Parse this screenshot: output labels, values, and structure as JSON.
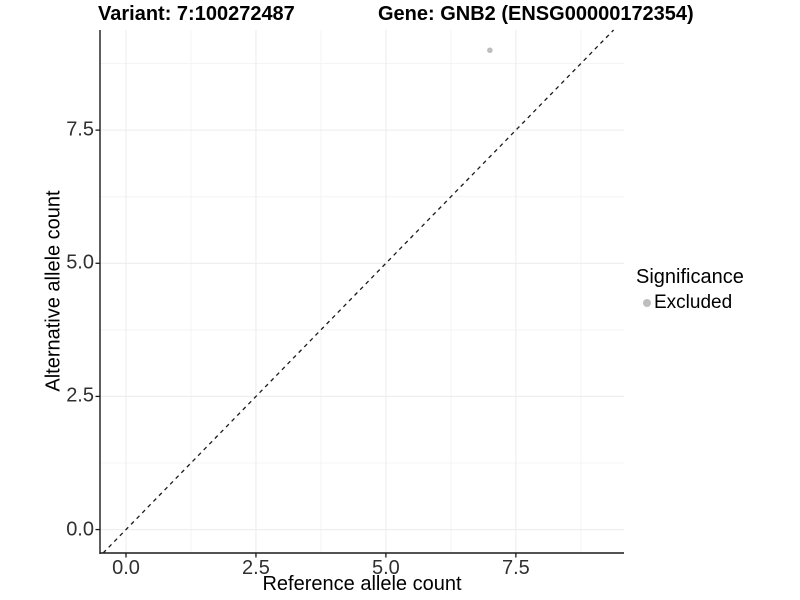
{
  "figure": {
    "title_left": "Variant: 7:100272487",
    "title_right": "Gene: GNB2 (ENSG00000172354)"
  },
  "chart_data": {
    "type": "scatter",
    "title": "Variant: 7:100272487    Gene: GNB2 (ENSG00000172354)",
    "xlabel": "Reference allele count",
    "ylabel": "Alternative allele count",
    "xlim": [
      -0.5,
      9.58
    ],
    "ylim": [
      -0.44,
      9.38
    ],
    "x_ticks": {
      "values": [
        0,
        2.5,
        5,
        7.5
      ],
      "labels": [
        "0.0",
        "2.5",
        "5.0",
        "7.5"
      ]
    },
    "y_ticks": {
      "values": [
        0,
        2.5,
        5,
        7.5
      ],
      "labels": [
        "0.0",
        "2.5",
        "5.0",
        "7.5"
      ]
    },
    "x_minor_ticks": [
      1.25,
      3.75,
      6.25,
      8.75
    ],
    "y_minor_ticks": [
      1.25,
      3.75,
      6.25,
      8.75
    ],
    "grid": "major+minor",
    "series": [
      {
        "name": "Excluded",
        "marker": "circle",
        "color": "#bebebe",
        "points": [
          {
            "x": 7,
            "y": 9
          }
        ]
      }
    ],
    "reference_line": {
      "type": "identity y=x",
      "style": "dashed",
      "color": "#1a1a1a"
    },
    "legend": {
      "title": "Significance",
      "position": "right",
      "entries": [
        {
          "label": "Excluded",
          "color": "#bebebe",
          "marker": "circle"
        }
      ]
    }
  },
  "colors": {
    "background": "#ffffff",
    "grid_major": "#ececec",
    "grid_minor": "#f4f4f4",
    "axis_line": "#1a1a1a",
    "tick_text": "#303030",
    "point_fill": "#bebebe"
  }
}
